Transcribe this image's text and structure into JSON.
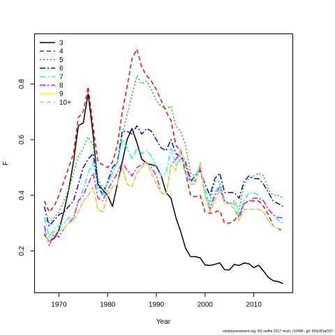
{
  "chart_data": {
    "type": "line",
    "xlabel": "Year",
    "ylabel": "F",
    "xlim": [
      1965,
      2018
    ],
    "ylim": [
      0.05,
      0.98
    ],
    "x_ticks": [
      1970,
      1980,
      1990,
      2000,
      2010
    ],
    "y_ticks": [
      0.2,
      0.4,
      0.6,
      0.8
    ],
    "legend_position": "top-left",
    "x": [
      1967,
      1968,
      1969,
      1970,
      1971,
      1972,
      1973,
      1974,
      1975,
      1976,
      1977,
      1978,
      1979,
      1980,
      1981,
      1982,
      1983,
      1984,
      1985,
      1986,
      1987,
      1988,
      1989,
      1990,
      1991,
      1992,
      1993,
      1994,
      1995,
      1996,
      1997,
      1998,
      1999,
      2000,
      2001,
      2002,
      2003,
      2004,
      2005,
      2006,
      2007,
      2008,
      2009,
      2010,
      2011,
      2012,
      2013,
      2014,
      2015,
      2016
    ],
    "series": [
      {
        "name": "3",
        "color": "#000000",
        "dash": "solid",
        "values": [
          0.26,
          0.235,
          0.245,
          0.275,
          0.34,
          0.42,
          0.52,
          0.65,
          0.66,
          0.765,
          0.62,
          0.44,
          0.42,
          0.4,
          0.36,
          0.44,
          0.52,
          0.6,
          0.64,
          0.59,
          0.53,
          0.515,
          0.51,
          0.505,
          0.47,
          0.41,
          0.39,
          0.32,
          0.27,
          0.21,
          0.18,
          0.18,
          0.175,
          0.15,
          0.148,
          0.152,
          0.158,
          0.133,
          0.132,
          0.152,
          0.148,
          0.157,
          0.154,
          0.14,
          0.149,
          0.128,
          0.105,
          0.093,
          0.09,
          0.083
        ]
      },
      {
        "name": "4",
        "color": "#ff0000",
        "dash": "6,4",
        "values": [
          0.38,
          0.34,
          0.36,
          0.4,
          0.45,
          0.5,
          0.55,
          0.68,
          0.7,
          0.79,
          0.65,
          0.52,
          0.51,
          0.5,
          0.52,
          0.58,
          0.7,
          0.79,
          0.89,
          0.925,
          0.86,
          0.83,
          0.81,
          0.78,
          0.74,
          0.7,
          0.67,
          0.58,
          0.56,
          0.48,
          0.4,
          0.395,
          0.4,
          0.34,
          0.335,
          0.34,
          0.345,
          0.3,
          0.3,
          0.31,
          0.33,
          0.37,
          0.38,
          0.38,
          0.38,
          0.36,
          0.33,
          0.29,
          0.28,
          0.27
        ]
      },
      {
        "name": "5",
        "color": "#00cc00",
        "dash": "2,3",
        "values": [
          0.32,
          0.3,
          0.32,
          0.34,
          0.38,
          0.42,
          0.48,
          0.54,
          0.57,
          0.61,
          0.58,
          0.46,
          0.42,
          0.44,
          0.48,
          0.52,
          0.62,
          0.69,
          0.76,
          0.83,
          0.8,
          0.81,
          0.78,
          0.74,
          0.72,
          0.71,
          0.72,
          0.65,
          0.63,
          0.58,
          0.48,
          0.47,
          0.51,
          0.4,
          0.38,
          0.45,
          0.45,
          0.38,
          0.37,
          0.38,
          0.35,
          0.44,
          0.46,
          0.47,
          0.48,
          0.47,
          0.42,
          0.4,
          0.4,
          0.39
        ]
      },
      {
        "name": "6",
        "color": "#0000ff",
        "dash": "8,3,2,3",
        "values": [
          0.36,
          0.29,
          0.31,
          0.33,
          0.34,
          0.36,
          0.38,
          0.44,
          0.5,
          0.53,
          0.55,
          0.44,
          0.4,
          0.45,
          0.5,
          0.52,
          0.63,
          0.63,
          0.62,
          0.65,
          0.62,
          0.64,
          0.63,
          0.6,
          0.57,
          0.56,
          0.6,
          0.55,
          0.54,
          0.51,
          0.45,
          0.47,
          0.49,
          0.44,
          0.4,
          0.46,
          0.48,
          0.41,
          0.41,
          0.41,
          0.39,
          0.45,
          0.47,
          0.46,
          0.46,
          0.44,
          0.41,
          0.38,
          0.37,
          0.36
        ]
      },
      {
        "name": "7",
        "color": "#00ffff",
        "dash": "8,3,2,3",
        "values": [
          0.32,
          0.25,
          0.28,
          0.29,
          0.3,
          0.32,
          0.32,
          0.38,
          0.42,
          0.48,
          0.52,
          0.42,
          0.4,
          0.45,
          0.48,
          0.52,
          0.6,
          0.57,
          0.53,
          0.57,
          0.55,
          0.56,
          0.54,
          0.5,
          0.47,
          0.48,
          0.57,
          0.51,
          0.53,
          0.48,
          0.44,
          0.47,
          0.51,
          0.42,
          0.36,
          0.41,
          0.44,
          0.38,
          0.37,
          0.37,
          0.33,
          0.38,
          0.41,
          0.41,
          0.4,
          0.38,
          0.35,
          0.33,
          0.31,
          0.3
        ]
      },
      {
        "name": "8",
        "color": "#ff00ff",
        "dash": "8,3,2,3",
        "values": [
          0.29,
          0.22,
          0.26,
          0.25,
          0.28,
          0.3,
          0.32,
          0.38,
          0.4,
          0.44,
          0.48,
          0.39,
          0.38,
          0.42,
          0.45,
          0.48,
          0.52,
          0.49,
          0.47,
          0.5,
          0.51,
          0.52,
          0.5,
          0.47,
          0.41,
          0.4,
          0.51,
          0.53,
          0.56,
          0.52,
          0.46,
          0.45,
          0.5,
          0.4,
          0.35,
          0.4,
          0.43,
          0.38,
          0.37,
          0.35,
          0.32,
          0.37,
          0.38,
          0.39,
          0.39,
          0.38,
          0.35,
          0.33,
          0.32,
          0.32
        ]
      },
      {
        "name": "9",
        "color": "#ffff00",
        "dash": "solid",
        "values": [
          0.27,
          0.23,
          0.27,
          0.27,
          0.28,
          0.3,
          0.31,
          0.34,
          0.38,
          0.4,
          0.43,
          0.35,
          0.34,
          0.4,
          0.43,
          0.44,
          0.5,
          0.44,
          0.43,
          0.48,
          0.5,
          0.52,
          0.48,
          0.44,
          0.41,
          0.4,
          0.51,
          0.49,
          0.57,
          0.5,
          0.44,
          0.44,
          0.52,
          0.4,
          0.34,
          0.38,
          0.42,
          0.37,
          0.37,
          0.35,
          0.31,
          0.35,
          0.35,
          0.35,
          0.35,
          0.34,
          0.31,
          0.29,
          0.28,
          0.28
        ]
      },
      {
        "name": "10+",
        "color": "#bbbbbb",
        "dash": "6,4",
        "values": [
          0.27,
          0.23,
          0.27,
          0.27,
          0.28,
          0.3,
          0.31,
          0.34,
          0.38,
          0.4,
          0.43,
          0.35,
          0.34,
          0.4,
          0.43,
          0.44,
          0.5,
          0.44,
          0.43,
          0.48,
          0.5,
          0.52,
          0.48,
          0.44,
          0.41,
          0.4,
          0.51,
          0.49,
          0.57,
          0.5,
          0.44,
          0.44,
          0.52,
          0.4,
          0.34,
          0.38,
          0.42,
          0.37,
          0.37,
          0.35,
          0.31,
          0.35,
          0.35,
          0.35,
          0.35,
          0.34,
          0.31,
          0.29,
          0.28,
          0.28
        ]
      }
    ]
  },
  "footer": "stockassessment.org,  NS  saithe  2017  rerun,  r10468 ,  git:  503cf91af157"
}
